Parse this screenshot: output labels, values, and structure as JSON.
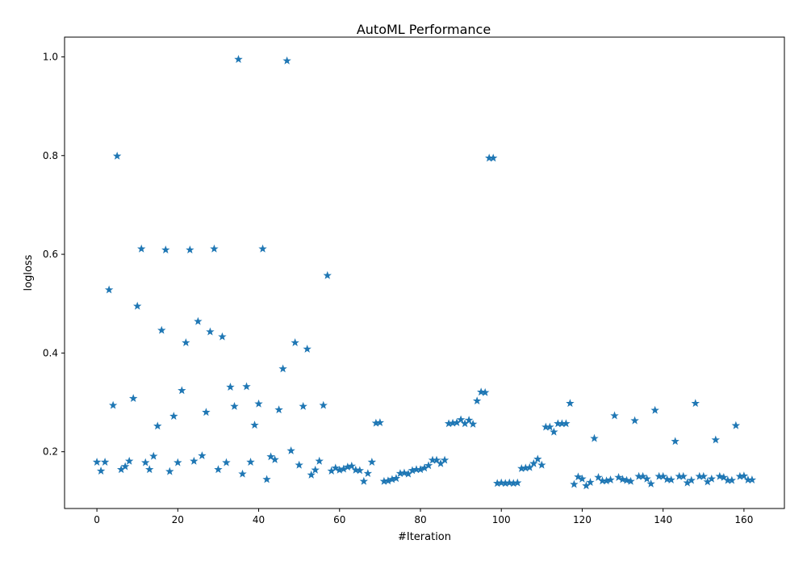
{
  "chart_data": {
    "type": "scatter",
    "title": "AutoML Performance",
    "xlabel": "#Iteration",
    "ylabel": "logloss",
    "xlim": [
      -8,
      170
    ],
    "ylim": [
      0.085,
      1.04
    ],
    "xticks": [
      0,
      20,
      40,
      60,
      80,
      100,
      120,
      140,
      160
    ],
    "yticks": [
      0.2,
      0.4,
      0.6,
      0.8,
      1.0
    ],
    "ytick_labels": [
      "0.2",
      "0.4",
      "0.6",
      "0.8",
      "1.0"
    ],
    "grid": false,
    "marker": "star",
    "color": "#1f77b4",
    "series": [
      {
        "name": "logloss",
        "x": [
          0,
          1,
          2,
          3,
          4,
          5,
          6,
          7,
          8,
          9,
          10,
          11,
          12,
          13,
          14,
          15,
          16,
          17,
          18,
          19,
          20,
          21,
          22,
          23,
          24,
          25,
          26,
          27,
          28,
          29,
          30,
          31,
          32,
          33,
          34,
          35,
          36,
          37,
          38,
          39,
          40,
          41,
          42,
          43,
          44,
          45,
          46,
          47,
          48,
          49,
          50,
          51,
          52,
          53,
          54,
          55,
          56,
          57,
          58,
          59,
          60,
          61,
          62,
          63,
          64,
          65,
          66,
          67,
          68,
          69,
          70,
          71,
          72,
          73,
          74,
          75,
          76,
          77,
          78,
          79,
          80,
          81,
          82,
          83,
          84,
          85,
          86,
          87,
          88,
          89,
          90,
          91,
          92,
          93,
          94,
          95,
          96,
          97,
          98,
          99,
          100,
          101,
          102,
          103,
          104,
          105,
          106,
          107,
          108,
          109,
          110,
          111,
          112,
          113,
          114,
          115,
          116,
          117,
          118,
          119,
          120,
          121,
          122,
          123,
          124,
          125,
          126,
          127,
          128,
          129,
          130,
          131,
          132,
          133,
          134,
          135,
          136,
          137,
          138,
          139,
          140,
          141,
          142,
          143,
          144,
          145,
          146,
          147,
          148,
          149,
          150,
          151,
          152,
          153,
          154,
          155,
          156,
          157,
          158,
          159,
          160,
          161,
          162
        ],
        "y": [
          0.179,
          0.161,
          0.179,
          0.528,
          0.294,
          0.799,
          0.164,
          0.17,
          0.181,
          0.308,
          0.495,
          0.611,
          0.178,
          0.164,
          0.191,
          0.252,
          0.446,
          0.609,
          0.16,
          0.272,
          0.178,
          0.324,
          0.421,
          0.609,
          0.181,
          0.464,
          0.192,
          0.28,
          0.443,
          0.611,
          0.164,
          0.433,
          0.178,
          0.331,
          0.292,
          0.995,
          0.155,
          0.332,
          0.179,
          0.254,
          0.297,
          0.611,
          0.144,
          0.19,
          0.184,
          0.285,
          0.368,
          0.992,
          0.202,
          0.421,
          0.173,
          0.292,
          0.408,
          0.153,
          0.163,
          0.181,
          0.294,
          0.557,
          0.161,
          0.167,
          0.163,
          0.165,
          0.169,
          0.171,
          0.163,
          0.162,
          0.14,
          0.156,
          0.179,
          0.258,
          0.259,
          0.14,
          0.141,
          0.144,
          0.146,
          0.156,
          0.157,
          0.155,
          0.162,
          0.164,
          0.164,
          0.167,
          0.172,
          0.183,
          0.183,
          0.176,
          0.183,
          0.257,
          0.258,
          0.259,
          0.265,
          0.257,
          0.264,
          0.256,
          0.303,
          0.321,
          0.32,
          0.795,
          0.795,
          0.136,
          0.137,
          0.136,
          0.137,
          0.136,
          0.137,
          0.166,
          0.167,
          0.168,
          0.176,
          0.185,
          0.173,
          0.25,
          0.25,
          0.24,
          0.257,
          0.257,
          0.257,
          0.298,
          0.134,
          0.149,
          0.145,
          0.131,
          0.138,
          0.227,
          0.148,
          0.141,
          0.141,
          0.143,
          0.273,
          0.148,
          0.144,
          0.142,
          0.14,
          0.263,
          0.15,
          0.15,
          0.145,
          0.135,
          0.284,
          0.15,
          0.15,
          0.144,
          0.143,
          0.221,
          0.15,
          0.15,
          0.137,
          0.142,
          0.298,
          0.15,
          0.15,
          0.139,
          0.145,
          0.224,
          0.15,
          0.148,
          0.142,
          0.142,
          0.253,
          0.15,
          0.151,
          0.143,
          0.143
        ]
      }
    ]
  }
}
